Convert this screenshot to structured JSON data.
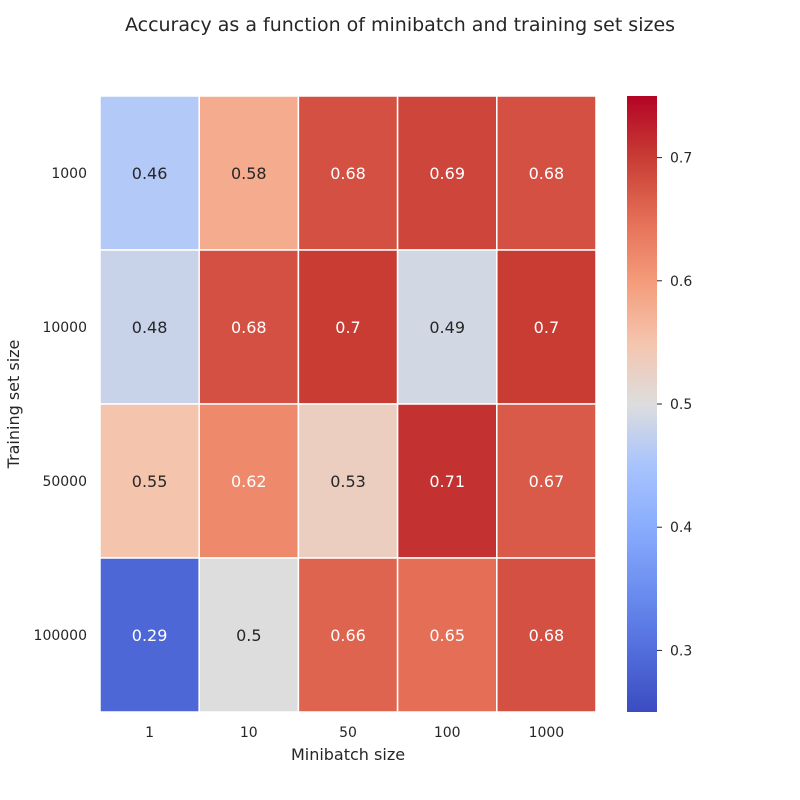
{
  "chart_data": {
    "type": "heatmap",
    "title": "Accuracy as a function of minibatch and training set sizes",
    "xlabel": "Minibatch size",
    "ylabel": "Training set size",
    "x_categories": [
      "1",
      "10",
      "50",
      "100",
      "1000"
    ],
    "y_categories": [
      "1000",
      "10000",
      "50000",
      "100000"
    ],
    "values": [
      [
        0.46,
        0.58,
        0.68,
        0.69,
        0.68
      ],
      [
        0.48,
        0.68,
        0.7,
        0.49,
        0.7
      ],
      [
        0.55,
        0.62,
        0.53,
        0.71,
        0.67
      ],
      [
        0.29,
        0.5,
        0.66,
        0.65,
        0.68
      ]
    ],
    "annotations": [
      [
        "0.46",
        "0.58",
        "0.68",
        "0.69",
        "0.68"
      ],
      [
        "0.48",
        "0.68",
        "0.7",
        "0.49",
        "0.7"
      ],
      [
        "0.55",
        "0.62",
        "0.53",
        "0.71",
        "0.67"
      ],
      [
        "0.29",
        "0.5",
        "0.66",
        "0.65",
        "0.68"
      ]
    ],
    "colormap": "coolwarm",
    "vmin": 0.25,
    "vmax": 0.75,
    "colorbar_ticks": [
      "0.3",
      "0.4",
      "0.5",
      "0.6",
      "0.7"
    ],
    "grid": false,
    "cell_separator_color": "#ffffff"
  }
}
